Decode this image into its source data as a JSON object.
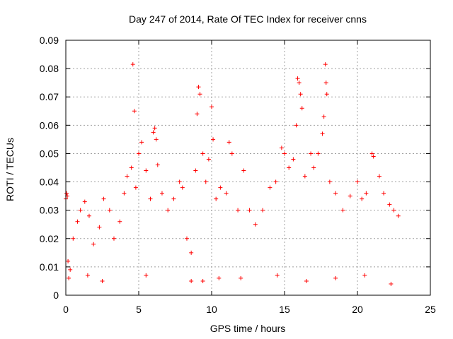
{
  "chart_data": {
    "type": "scatter",
    "title": "Day 247 of 2014, Rate Of TEC Index for receiver cnns",
    "xlabel": "GPS time / hours",
    "ylabel": "ROTI / TECUs",
    "xlim": [
      0,
      25
    ],
    "ylim": [
      0,
      0.09
    ],
    "grid": true,
    "legend": "none",
    "marker": "+",
    "colors": {
      "points": "#ff0000",
      "axis": "#000000",
      "grid": "#a0a0a0"
    },
    "xticks": [
      0,
      5,
      10,
      15,
      20,
      25
    ],
    "xtick_labels": [
      "0",
      "5",
      "10",
      "15",
      "20",
      "25"
    ],
    "yticks": [
      0,
      0.01,
      0.02,
      0.03,
      0.04,
      0.05,
      0.06,
      0.07,
      0.08,
      0.09
    ],
    "ytick_labels": [
      "0",
      "0.01",
      "0.02",
      "0.03",
      "0.04",
      "0.05",
      "0.06",
      "0.07",
      "0.08",
      "0.09"
    ],
    "series": [
      {
        "name": "ROTI",
        "points": [
          [
            0.0,
            0.034
          ],
          [
            0.05,
            0.036
          ],
          [
            0.1,
            0.035
          ],
          [
            0.15,
            0.012
          ],
          [
            0.3,
            0.009
          ],
          [
            0.5,
            0.02
          ],
          [
            0.8,
            0.026
          ],
          [
            1.0,
            0.03
          ],
          [
            1.3,
            0.033
          ],
          [
            1.6,
            0.028
          ],
          [
            1.9,
            0.018
          ],
          [
            2.3,
            0.024
          ],
          [
            2.6,
            0.034
          ],
          [
            3.0,
            0.03
          ],
          [
            3.3,
            0.02
          ],
          [
            3.7,
            0.026
          ],
          [
            4.0,
            0.036
          ],
          [
            4.2,
            0.042
          ],
          [
            4.5,
            0.045
          ],
          [
            4.6,
            0.0815
          ],
          [
            4.7,
            0.065
          ],
          [
            4.8,
            0.038
          ],
          [
            5.0,
            0.05
          ],
          [
            5.2,
            0.054
          ],
          [
            5.5,
            0.044
          ],
          [
            5.8,
            0.034
          ],
          [
            6.0,
            0.0575
          ],
          [
            6.1,
            0.059
          ],
          [
            6.2,
            0.055
          ],
          [
            6.3,
            0.046
          ],
          [
            6.6,
            0.036
          ],
          [
            7.0,
            0.03
          ],
          [
            7.4,
            0.034
          ],
          [
            7.8,
            0.04
          ],
          [
            8.0,
            0.038
          ],
          [
            8.3,
            0.02
          ],
          [
            8.6,
            0.015
          ],
          [
            8.9,
            0.044
          ],
          [
            9.0,
            0.064
          ],
          [
            9.1,
            0.0735
          ],
          [
            9.2,
            0.071
          ],
          [
            9.4,
            0.05
          ],
          [
            9.6,
            0.04
          ],
          [
            9.8,
            0.048
          ],
          [
            10.0,
            0.0665
          ],
          [
            10.1,
            0.055
          ],
          [
            10.3,
            0.034
          ],
          [
            10.6,
            0.038
          ],
          [
            11.0,
            0.036
          ],
          [
            11.2,
            0.054
          ],
          [
            11.4,
            0.05
          ],
          [
            11.8,
            0.03
          ],
          [
            12.2,
            0.044
          ],
          [
            12.6,
            0.03
          ],
          [
            13.0,
            0.025
          ],
          [
            13.5,
            0.03
          ],
          [
            14.0,
            0.038
          ],
          [
            14.4,
            0.04
          ],
          [
            14.8,
            0.052
          ],
          [
            15.0,
            0.05
          ],
          [
            15.3,
            0.045
          ],
          [
            15.6,
            0.048
          ],
          [
            15.8,
            0.06
          ],
          [
            15.9,
            0.0765
          ],
          [
            16.0,
            0.075
          ],
          [
            16.1,
            0.071
          ],
          [
            16.2,
            0.066
          ],
          [
            16.4,
            0.042
          ],
          [
            16.8,
            0.05
          ],
          [
            17.0,
            0.045
          ],
          [
            17.3,
            0.05
          ],
          [
            17.6,
            0.057
          ],
          [
            17.7,
            0.063
          ],
          [
            17.8,
            0.0815
          ],
          [
            17.85,
            0.075
          ],
          [
            17.9,
            0.071
          ],
          [
            18.1,
            0.04
          ],
          [
            18.5,
            0.036
          ],
          [
            19.0,
            0.03
          ],
          [
            19.5,
            0.035
          ],
          [
            20.0,
            0.04
          ],
          [
            20.3,
            0.034
          ],
          [
            20.6,
            0.036
          ],
          [
            21.0,
            0.05
          ],
          [
            21.1,
            0.049
          ],
          [
            21.5,
            0.042
          ],
          [
            21.8,
            0.036
          ],
          [
            22.2,
            0.032
          ],
          [
            22.5,
            0.03
          ],
          [
            22.8,
            0.028
          ],
          [
            0.2,
            0.006
          ],
          [
            1.5,
            0.007
          ],
          [
            2.5,
            0.005
          ],
          [
            5.5,
            0.007
          ],
          [
            8.6,
            0.005
          ],
          [
            9.4,
            0.005
          ],
          [
            10.5,
            0.006
          ],
          [
            12.0,
            0.006
          ],
          [
            14.5,
            0.007
          ],
          [
            16.5,
            0.005
          ],
          [
            18.5,
            0.006
          ],
          [
            20.5,
            0.007
          ],
          [
            22.3,
            0.004
          ]
        ]
      }
    ]
  }
}
